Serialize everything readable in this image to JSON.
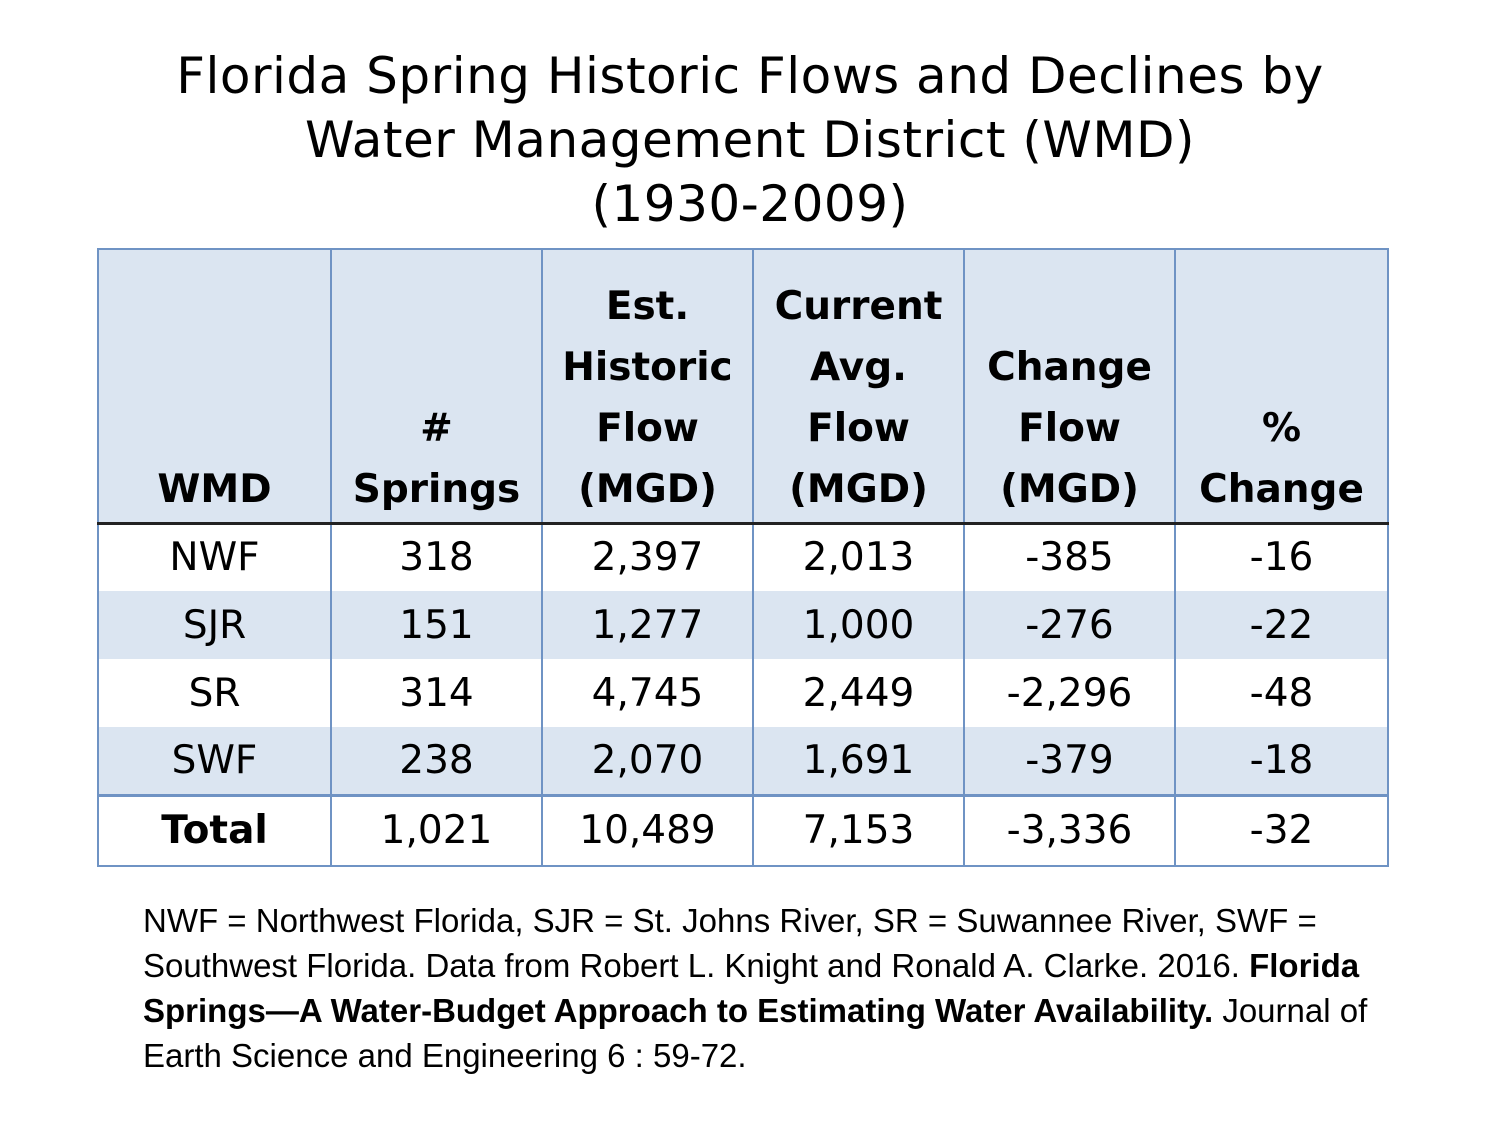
{
  "title": {
    "line1": "Florida Spring Historic Flows and Declines by",
    "line2": "Water Management District (WMD)",
    "line3": "(1930-2009)"
  },
  "table": {
    "headers": [
      [
        "WMD"
      ],
      [
        "#",
        "Springs"
      ],
      [
        "Est.",
        "Historic",
        "Flow",
        "(MGD)"
      ],
      [
        "Current",
        "Avg.",
        "Flow",
        "(MGD)"
      ],
      [
        "Change",
        "Flow",
        "(MGD)"
      ],
      [
        "%",
        "Change"
      ]
    ],
    "rows": [
      [
        "NWF",
        "318",
        "2,397",
        "2,013",
        "-385",
        "-16"
      ],
      [
        "SJR",
        "151",
        "1,277",
        "1,000",
        "-276",
        "-22"
      ],
      [
        "SR",
        "314",
        "4,745",
        "2,449",
        "-2,296",
        "-48"
      ],
      [
        "SWF",
        "238",
        "2,070",
        "1,691",
        "-379",
        "-18"
      ]
    ],
    "total": [
      "Total",
      "1,021",
      "10,489",
      "7,153",
      "-3,336",
      "-32"
    ]
  },
  "note": {
    "part1": "NWF = Northwest Florida, SJR = St. Johns River, SR = Suwannee River, SWF = Southwest Florida. Data from Robert L. Knight and Ronald A. Clarke. 2016. ",
    "bold": "Florida Springs—A Water-Budget Approach to Estimating Water Availability.",
    "part2": " Journal of Earth Science and Engineering 6 : 59-72."
  },
  "colors": {
    "header_fill": "#dbe5f1",
    "band_fill": "#dbe5f1",
    "border": "#6f93c4"
  }
}
